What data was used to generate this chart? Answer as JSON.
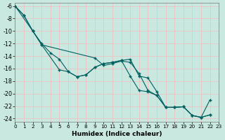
{
  "xlabel": "Humidex (Indice chaleur)",
  "xlim": [
    0,
    23
  ],
  "ylim": [
    -24.5,
    -5.5
  ],
  "xticks": [
    0,
    1,
    2,
    3,
    4,
    5,
    6,
    7,
    8,
    9,
    10,
    11,
    12,
    13,
    14,
    15,
    16,
    17,
    18,
    19,
    20,
    21,
    22,
    23
  ],
  "yticks": [
    -6,
    -8,
    -10,
    -12,
    -14,
    -16,
    -18,
    -20,
    -22,
    -24
  ],
  "bg_color": "#c8e8e0",
  "grid_color": "#e8c8c8",
  "line_color": "#006060",
  "line1_x": [
    0,
    1,
    2,
    3,
    4,
    5,
    6,
    7,
    8,
    9,
    10,
    11,
    12,
    13,
    14,
    15,
    16,
    17,
    18,
    19,
    20,
    21,
    22
  ],
  "line1_y": [
    -6,
    -7.5,
    -10,
    -12,
    -13.5,
    -14.5,
    -16.5,
    -17.3,
    -17.0,
    -15.8,
    -15.2,
    -15.0,
    -14.7,
    -17.2,
    -19.5,
    -19.7,
    -20.3,
    -22.2,
    -22.2,
    -22.1,
    -23.5,
    -23.8,
    -23.4
  ],
  "line2_x": [
    0,
    2,
    3,
    9,
    10,
    11,
    12,
    13,
    14,
    15,
    16,
    17,
    18,
    19,
    20,
    21,
    22
  ],
  "line2_y": [
    -6,
    -10,
    -12.2,
    -14.3,
    -15.5,
    -15.2,
    -14.8,
    -15.0,
    -16.8,
    -19.5,
    -20.3,
    -22.2,
    -22.2,
    -22.1,
    -23.5,
    -23.8,
    -23.4
  ],
  "line3_x": [
    0,
    1,
    2,
    3,
    5,
    6,
    7,
    8,
    9,
    10,
    11,
    12,
    13,
    14,
    15,
    16,
    17,
    18,
    19,
    20,
    21,
    22
  ],
  "line3_y": [
    -6,
    -7.5,
    -10,
    -12.2,
    -16.2,
    -16.5,
    -17.3,
    -17.0,
    -15.8,
    -15.2,
    -15.0,
    -14.7,
    -14.5,
    -17.2,
    -17.5,
    -19.7,
    -22.2,
    -22.2,
    -22.1,
    -23.5,
    -23.8,
    -21.0
  ]
}
